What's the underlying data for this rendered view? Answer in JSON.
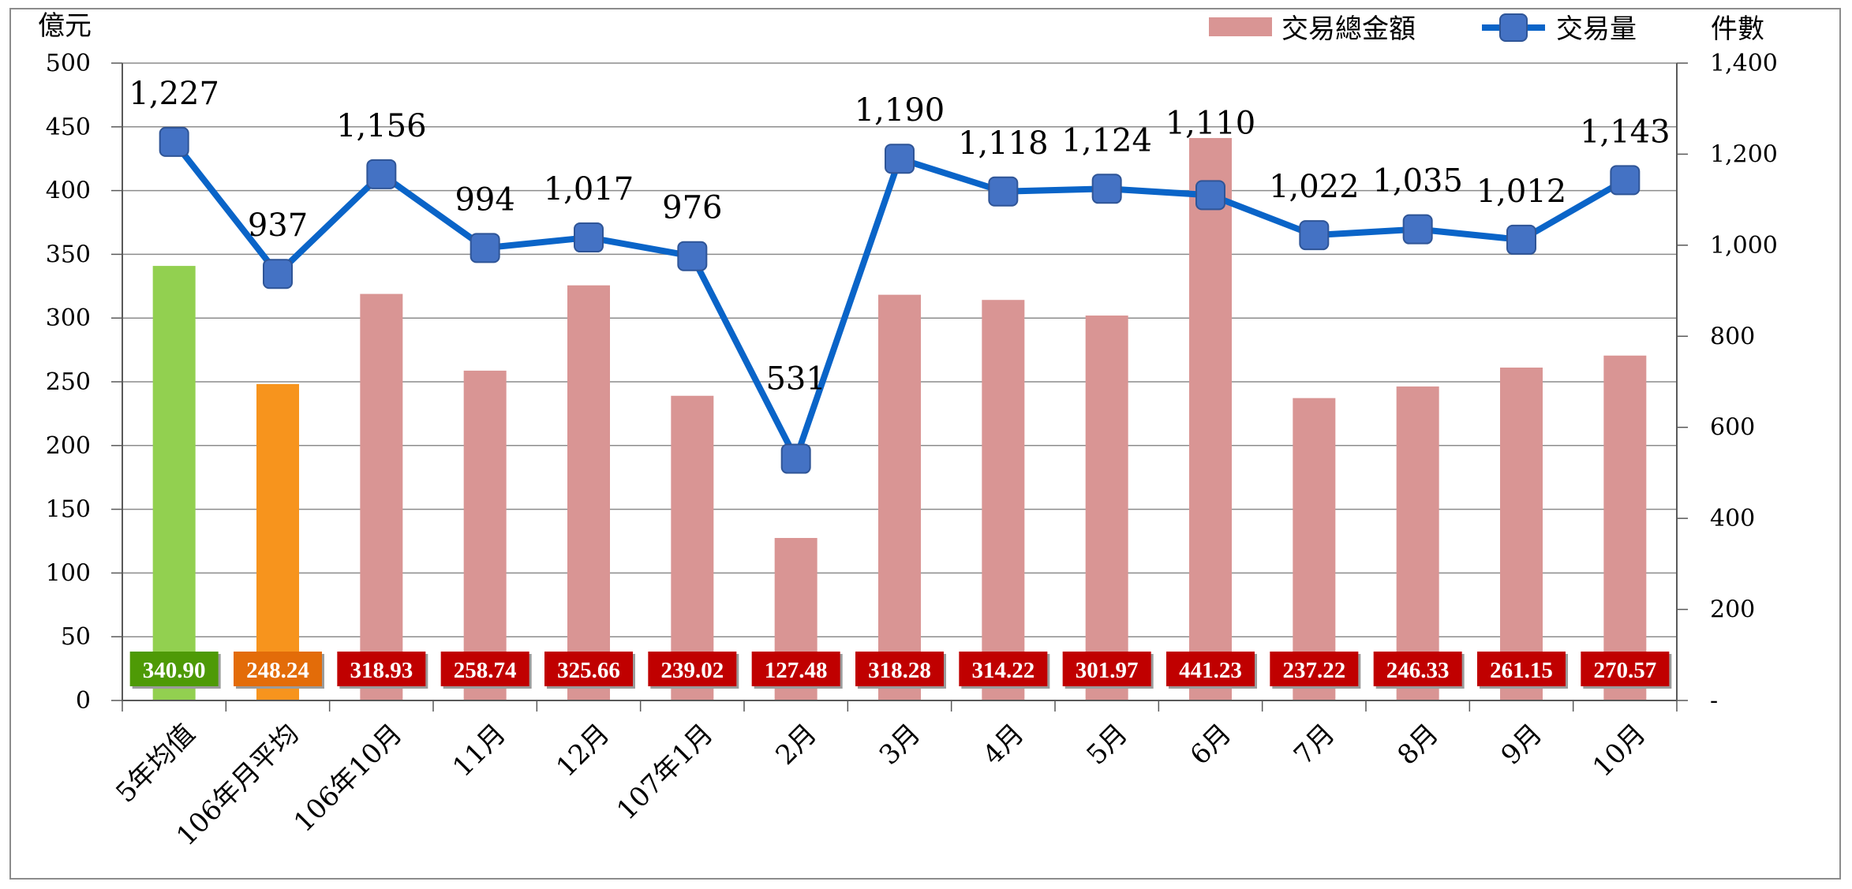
{
  "chart_data": {
    "type": "bar+line",
    "categories": [
      "5年均值",
      "106年月平均",
      "106年10月",
      "11月",
      "12月",
      "107年1月",
      "2月",
      "3月",
      "4月",
      "5月",
      "6月",
      "7月",
      "8月",
      "9月",
      "10月"
    ],
    "series": [
      {
        "name": "交易總金額",
        "type": "bar",
        "axis": "left",
        "values": [
          340.9,
          248.24,
          318.93,
          258.74,
          325.66,
          239.02,
          127.48,
          318.28,
          314.22,
          301.97,
          441.23,
          237.22,
          246.33,
          261.15,
          270.57
        ],
        "value_labels": [
          "340.90",
          "248.24",
          "318.93",
          "258.74",
          "325.66",
          "239.02",
          "127.48",
          "318.28",
          "314.22",
          "301.97",
          "441.23",
          "237.22",
          "246.33",
          "261.15",
          "270.57"
        ],
        "colors": [
          "#92d050",
          "#f7941d",
          "#d99594",
          "#d99594",
          "#d99594",
          "#d99594",
          "#d99594",
          "#d99594",
          "#d99594",
          "#d99594",
          "#d99594",
          "#d99594",
          "#d99594",
          "#d99594",
          "#d99594"
        ],
        "label_box_colors": [
          "#4e9a06",
          "#e36c09",
          "#c00000",
          "#c00000",
          "#c00000",
          "#c00000",
          "#c00000",
          "#c00000",
          "#c00000",
          "#c00000",
          "#c00000",
          "#c00000",
          "#c00000",
          "#c00000",
          "#c00000"
        ]
      },
      {
        "name": "交易量",
        "type": "line",
        "axis": "right",
        "values": [
          1227,
          937,
          1156,
          994,
          1017,
          976,
          531,
          1190,
          1118,
          1124,
          1110,
          1022,
          1035,
          1012,
          1143
        ],
        "value_labels": [
          "1,227",
          "937",
          "1,156",
          "994",
          "1,017",
          "976",
          "531",
          "1,190",
          "1,118",
          "1,124",
          "1,110",
          "1,022",
          "1,035",
          "1,012",
          "1,143"
        ],
        "line_color": "#0a64c8",
        "marker_color": "#4472c4"
      }
    ],
    "left_axis": {
      "unit": "億元",
      "range": [
        0,
        500
      ],
      "ticks": [
        0,
        50,
        100,
        150,
        200,
        250,
        300,
        350,
        400,
        450,
        500
      ],
      "tick_labels": [
        "0",
        "50",
        "100",
        "150",
        "200",
        "250",
        "300",
        "350",
        "400",
        "450",
        "500"
      ]
    },
    "right_axis": {
      "unit": "件數",
      "range": [
        0,
        1400
      ],
      "ticks": [
        0,
        200,
        400,
        600,
        800,
        1000,
        1200,
        1400
      ],
      "tick_labels": [
        "-",
        "200",
        "400",
        "600",
        "800",
        "1,000",
        "1,200",
        "1,400"
      ]
    },
    "grid": true,
    "legend_position": "top-right",
    "legend": [
      {
        "label": "交易總金額",
        "kind": "bar",
        "color": "#d99594"
      },
      {
        "label": "交易量",
        "kind": "line",
        "color": "#0a64c8"
      }
    ]
  }
}
